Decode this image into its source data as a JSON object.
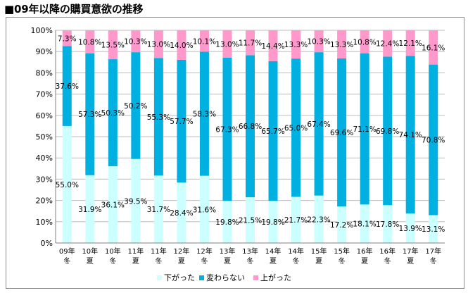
{
  "title": "■09年以降の購買意欲の推移",
  "chart_data": {
    "type": "bar",
    "stacked": true,
    "percent": true,
    "categories": [
      [
        "09年",
        "冬"
      ],
      [
        "10年",
        "夏"
      ],
      [
        "10年",
        "冬"
      ],
      [
        "11年",
        "夏"
      ],
      [
        "11年",
        "冬"
      ],
      [
        "12年",
        "夏"
      ],
      [
        "12年",
        "冬"
      ],
      [
        "13年",
        "夏"
      ],
      [
        "13年",
        "冬"
      ],
      [
        "14年",
        "夏"
      ],
      [
        "14年",
        "冬"
      ],
      [
        "15年",
        "夏"
      ],
      [
        "15年",
        "冬"
      ],
      [
        "16年",
        "夏"
      ],
      [
        "16年",
        "冬"
      ],
      [
        "17年",
        "夏"
      ],
      [
        "17年",
        "冬"
      ]
    ],
    "series": [
      {
        "name": "下がった",
        "color": "#ccffff",
        "values": [
          55.0,
          31.9,
          36.1,
          39.5,
          31.7,
          28.4,
          31.6,
          19.8,
          21.5,
          19.8,
          21.7,
          22.3,
          17.2,
          18.1,
          17.8,
          13.9,
          13.1
        ]
      },
      {
        "name": "変わらない",
        "color": "#00b0e0",
        "values": [
          37.6,
          57.3,
          50.3,
          50.2,
          55.3,
          57.7,
          58.3,
          67.3,
          66.8,
          65.7,
          65.0,
          67.4,
          69.6,
          71.1,
          69.8,
          74.1,
          70.8
        ]
      },
      {
        "name": "上がった",
        "color": "#ff99cc",
        "values": [
          7.3,
          10.8,
          13.5,
          10.3,
          13.0,
          14.0,
          10.1,
          13.0,
          11.7,
          14.4,
          13.3,
          10.3,
          13.3,
          10.8,
          12.4,
          12.1,
          16.1
        ]
      }
    ],
    "ylim": [
      0,
      100
    ],
    "yticks": [
      "0%",
      "10%",
      "20%",
      "30%",
      "40%",
      "50%",
      "60%",
      "70%",
      "80%",
      "90%",
      "100%"
    ],
    "grid": true,
    "legend": "bottom"
  }
}
